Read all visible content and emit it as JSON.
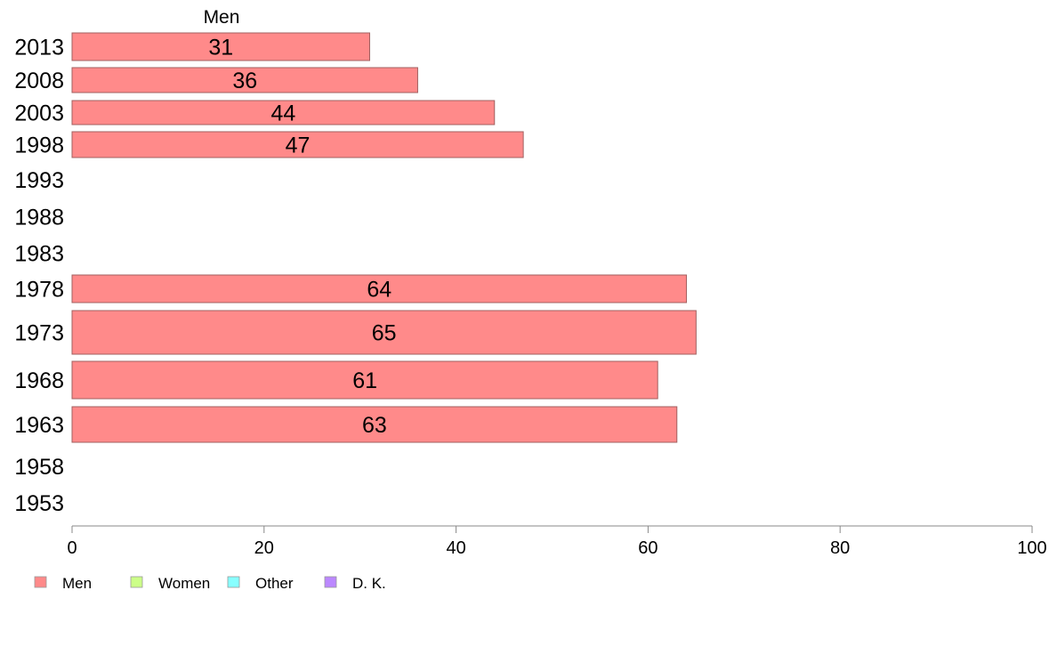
{
  "chart_data": {
    "type": "bar",
    "orientation": "horizontal",
    "categories": [
      "2013",
      "2008",
      "2003",
      "1998",
      "1993",
      "1988",
      "1983",
      "1978",
      "1973",
      "1968",
      "1963",
      "1958",
      "1953"
    ],
    "series": [
      {
        "name": "Men",
        "values": [
          31,
          36,
          44,
          47,
          null,
          null,
          null,
          64,
          65,
          61,
          63,
          null,
          null
        ]
      }
    ],
    "value_labels": [
      "31",
      "36",
      "44",
      "47",
      "",
      "",
      "",
      "64",
      "65",
      "61",
      "63",
      "",
      ""
    ],
    "xlim": [
      0,
      100
    ],
    "xticks": [
      "0",
      "20",
      "40",
      "60",
      "80",
      "100"
    ],
    "legend": {
      "placement": "bottom-left",
      "entries": [
        {
          "label": "Men",
          "color": "#ff8a8a"
        },
        {
          "label": "Women",
          "color": "#ccff88"
        },
        {
          "label": "Other",
          "color": "#88ffff"
        },
        {
          "label": "D. K.",
          "color": "#bb88ff"
        }
      ]
    },
    "colors": {
      "men": "#ff8a8a",
      "bar_border": "#a06060"
    }
  }
}
